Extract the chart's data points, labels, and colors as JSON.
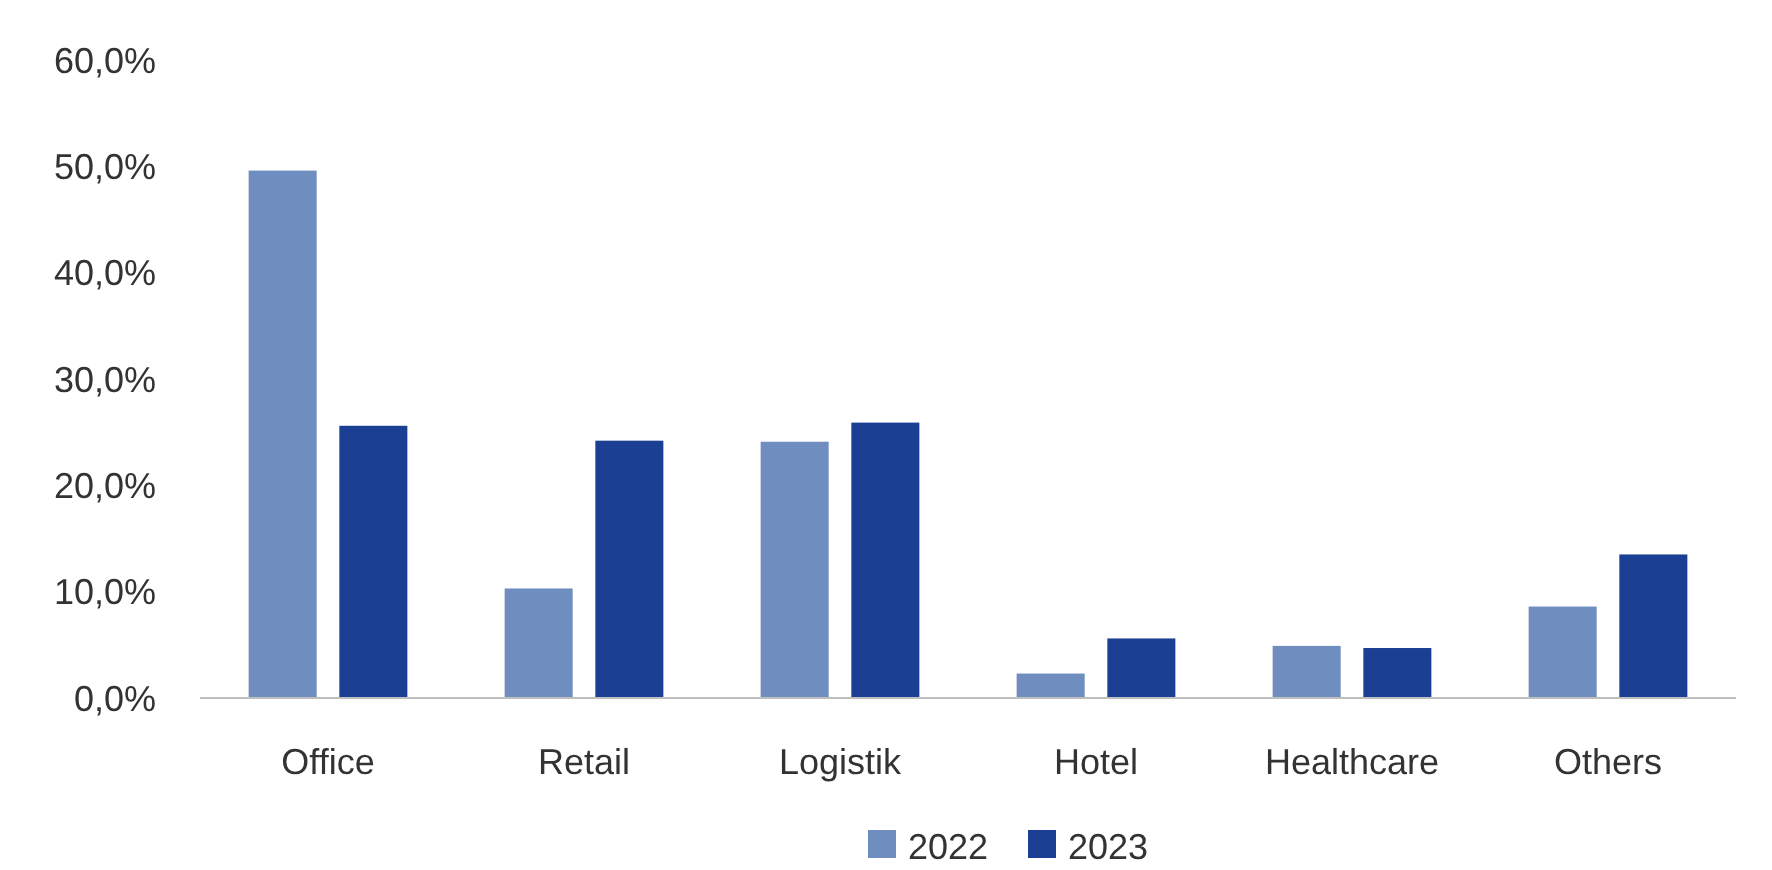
{
  "chart_data": {
    "type": "bar",
    "categories": [
      "Office",
      "Retail",
      "Logistik",
      "Hotel",
      "Healthcare",
      "Others"
    ],
    "series": [
      {
        "name": "2022",
        "color": "#6f8dbf",
        "values": [
          49.6,
          10.3,
          24.1,
          2.3,
          4.9,
          8.6
        ]
      },
      {
        "name": "2023",
        "color": "#1b3f93",
        "values": [
          25.6,
          24.2,
          25.9,
          5.6,
          4.7,
          13.5
        ]
      }
    ],
    "ylim": [
      0,
      60
    ],
    "yticks": [
      {
        "value": 0,
        "label": "0,0%"
      },
      {
        "value": 10,
        "label": "10,0%"
      },
      {
        "value": 20,
        "label": "20,0%"
      },
      {
        "value": 30,
        "label": "30,0%"
      },
      {
        "value": 40,
        "label": "40,0%"
      },
      {
        "value": 50,
        "label": "50,0%"
      },
      {
        "value": 60,
        "label": "60,0%"
      }
    ],
    "grid": false,
    "legend": "bottom"
  }
}
